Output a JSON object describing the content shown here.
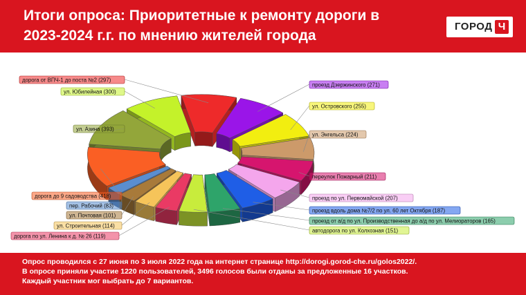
{
  "header": {
    "title_line1": "Итоги опроса: Приоритетные к ремонту дороги в",
    "title_line2": "2023-2024 г.г. по мнению жителей города",
    "logo_text": "ГОРОД",
    "logo_mark": "Ч"
  },
  "chart_data": {
    "type": "pie",
    "title": "Итоги опроса: Приоритетные к ремонту дороги в 2023-2024 г.г. по мнению жителей города",
    "slices": [
      {
        "label": "дорога от ВПЧ-1 до поста №2 (297)",
        "value": 297,
        "color": "#ee2a2a"
      },
      {
        "label": "проезд Дзержинского (271)",
        "value": 271,
        "color": "#9a15e8"
      },
      {
        "label": "ул. Островского (255)",
        "value": 255,
        "color": "#f2ee10"
      },
      {
        "label": "ул. Энгельса (224)",
        "value": 224,
        "color": "#cc9a6a"
      },
      {
        "label": "переулок Пожарный (211)",
        "value": 211,
        "color": "#d6156e"
      },
      {
        "label": "проезд по ул. Первомайской (207)",
        "value": 207,
        "color": "#f4a6ec"
      },
      {
        "label": "проезд вдоль дома №7/2 по ул. 60 лет Октября (187)",
        "value": 187,
        "color": "#1f5ee6"
      },
      {
        "label": "проезд от а/д по ул. Производственная до а/д по ул. Мелиораторов (165)",
        "value": 165,
        "color": "#2ea46a"
      },
      {
        "label": "автодорога по ул. Колхозная (151)",
        "value": 151,
        "color": "#c8ec3c"
      },
      {
        "label": "дорога по ул. Ленина к д. № 26 (119)",
        "value": 119,
        "color": "#ea3a64"
      },
      {
        "label": "ул. Строительная (114)",
        "value": 114,
        "color": "#f6c45a"
      },
      {
        "label": "ул. Почтовая (101)",
        "value": 101,
        "color": "#a87a3a"
      },
      {
        "label": "пер. Рабочий (83)",
        "value": 83,
        "color": "#5a8ed0"
      },
      {
        "label": "дорога до 9 садоводства (418)",
        "value": 418,
        "color": "#fa5f24"
      },
      {
        "label": "ул. Азина (393)",
        "value": 393,
        "color": "#93a63a"
      },
      {
        "label": "ул. Юбилейная (300)",
        "value": 300,
        "color": "#c4f22a"
      }
    ]
  },
  "footer": {
    "line1": "Опрос проводился с 27 июня по 3 июля 2022 года на интернет странице http://dorogi.gorod-che.ru/golos2022/.",
    "line2": "В опросе приняли участие  1220 пользователей, 3496 голосов были отданы за предложенные 16 участков.",
    "line3": "Каждый участник мог выбрать до 7 вариантов."
  }
}
